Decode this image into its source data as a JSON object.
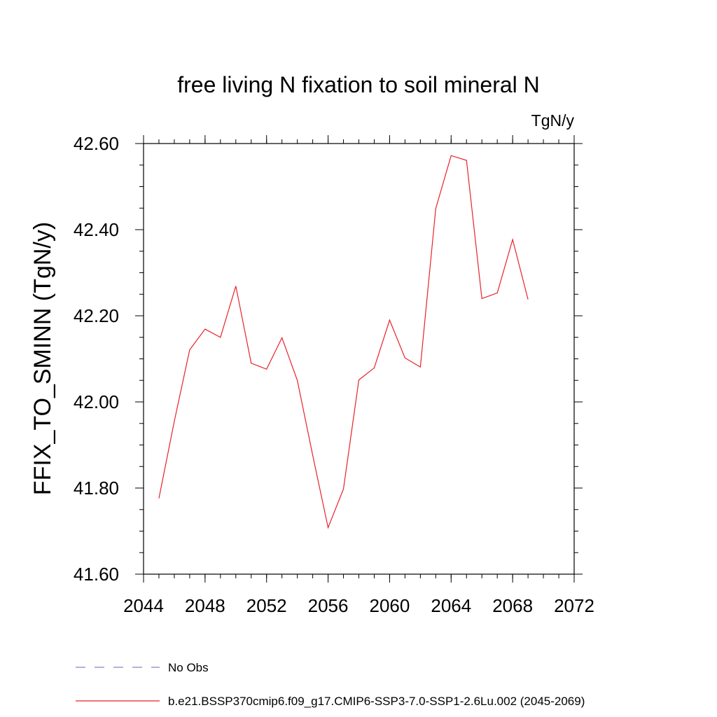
{
  "chart_data": {
    "type": "line",
    "title": "free living N fixation to soil mineral N",
    "units": "TgN/y",
    "ylabel": "FFIX_TO_SMINN  (TgN/y)",
    "xlabel": "",
    "xlim": [
      2044,
      2072
    ],
    "ylim": [
      41.6,
      42.6
    ],
    "x_ticks": [
      2044,
      2048,
      2052,
      2056,
      2060,
      2064,
      2068,
      2072
    ],
    "x_tick_labels": [
      "2044",
      "2048",
      "2052",
      "2056",
      "2060",
      "2064",
      "2068",
      "2072"
    ],
    "y_ticks": [
      41.6,
      41.8,
      42.0,
      42.2,
      42.4,
      42.6
    ],
    "y_tick_labels": [
      "41.60",
      "41.80",
      "42.00",
      "42.20",
      "42.40",
      "42.60"
    ],
    "grid": false,
    "series": [
      {
        "name": "b.e21.BSSP370cmip6.f09_g17.CMIP6-SSP3-7.0-SSP1-2.6Lu.002 (2045-2069)",
        "color": "#e8222a",
        "x": [
          2045,
          2046,
          2047,
          2048,
          2049,
          2050,
          2051,
          2052,
          2053,
          2054,
          2055,
          2056,
          2057,
          2058,
          2059,
          2060,
          2061,
          2062,
          2063,
          2064,
          2065,
          2066,
          2067,
          2068,
          2069
        ],
        "values": [
          41.776,
          41.955,
          42.121,
          42.169,
          42.15,
          42.269,
          42.09,
          42.076,
          42.149,
          42.05,
          41.876,
          41.708,
          41.798,
          42.051,
          42.079,
          42.19,
          42.102,
          42.081,
          42.449,
          42.572,
          42.561,
          42.24,
          42.253,
          42.377,
          42.238
        ]
      }
    ],
    "legend": [
      {
        "label": "No Obs",
        "style": "dashed",
        "color": "#8a82c0"
      },
      {
        "label": "b.e21.BSSP370cmip6.f09_g17.CMIP6-SSP3-7.0-SSP1-2.6Lu.002 (2045-2069)",
        "style": "solid",
        "color": "#e8222a"
      }
    ]
  }
}
